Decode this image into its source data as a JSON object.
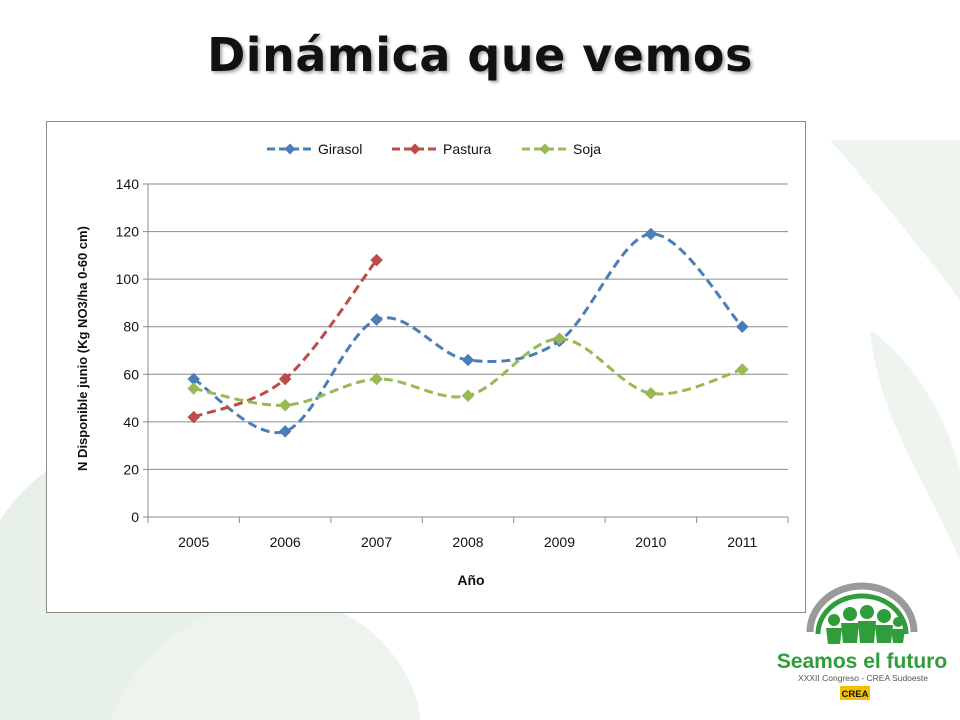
{
  "slide": {
    "title": "Dinámica que vemos"
  },
  "logo": {
    "name": "Seamos el futuro",
    "subtitle": "XXXII Congreso - CREA Sudoeste",
    "badge": "CREA",
    "colors": {
      "green": "#2e9d3a",
      "gray": "#8a8a8a",
      "yellow": "#f2c200"
    }
  },
  "chart_data": {
    "type": "line",
    "title": "",
    "xlabel": "Año",
    "ylabel": "N Disponible junio (Kg NO3/ha 0-60 cm)",
    "categories": [
      "2005",
      "2006",
      "2007",
      "2008",
      "2009",
      "2010",
      "2011"
    ],
    "ylim": [
      0,
      140
    ],
    "yticks": [
      0,
      20,
      40,
      60,
      80,
      100,
      120,
      140
    ],
    "grid": true,
    "legend_position": "top-center",
    "line_style": "dashed-smooth",
    "marker": "diamond",
    "series": [
      {
        "name": "Girasol",
        "color": "#4a7ebb",
        "values": [
          58,
          36,
          83,
          66,
          74,
          119,
          80
        ]
      },
      {
        "name": "Pastura",
        "color": "#be4b48",
        "values": [
          42,
          58,
          108,
          null,
          null,
          null,
          null
        ]
      },
      {
        "name": "Soja",
        "color": "#98b954",
        "values": [
          54,
          47,
          58,
          51,
          75,
          52,
          62
        ]
      }
    ]
  }
}
